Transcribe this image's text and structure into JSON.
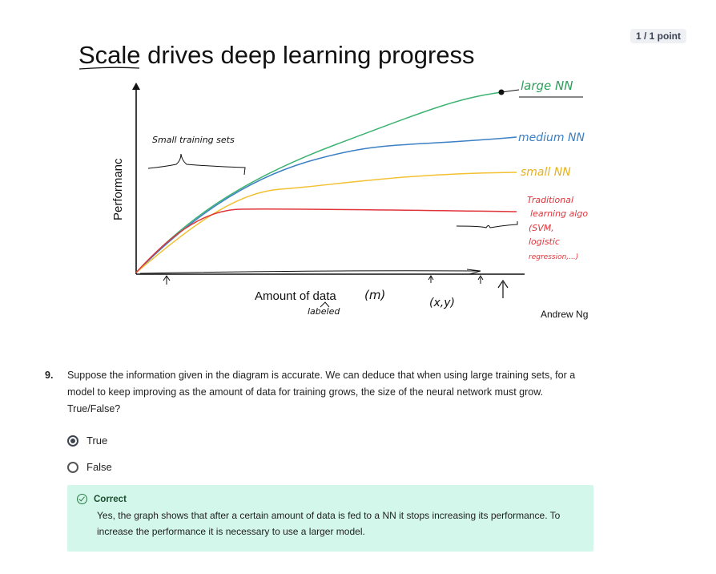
{
  "score": "1 / 1 point",
  "figure": {
    "title": "Scale drives deep learning progress",
    "y_label": "Performanc",
    "x_label": "Amount of data",
    "x_symbol": "(m)",
    "labeled_note": "labeled",
    "xy_note": "(x,y)",
    "small_sets_note": "Small training sets",
    "credit": "Andrew Ng",
    "curve_labels": {
      "large": "large NN",
      "medium": "medium NN",
      "small": "small NN",
      "traditional_1": "Traditional",
      "traditional_2": "learning algo",
      "traditional_3": "(SVM,",
      "traditional_4": "logistic",
      "traditional_5": "regression,...)"
    },
    "colors": {
      "large": "#3cb371",
      "medium": "#3b7fc4",
      "small": "#f2c030",
      "traditional": "#e0343a"
    }
  },
  "question": {
    "number": "9.",
    "text": "Suppose the information given in the diagram is accurate. We can deduce that when using large training sets, for a model to keep improving as the amount of data for training grows, the size of the neural network must grow. True/False?"
  },
  "options": [
    {
      "label": "True",
      "selected": true
    },
    {
      "label": "False",
      "selected": false
    }
  ],
  "feedback": {
    "status": "Correct",
    "text": "Yes, the graph shows that after a certain amount of data is fed to a NN it stops increasing its performance. To increase the performance it is necessary to use a larger model."
  }
}
